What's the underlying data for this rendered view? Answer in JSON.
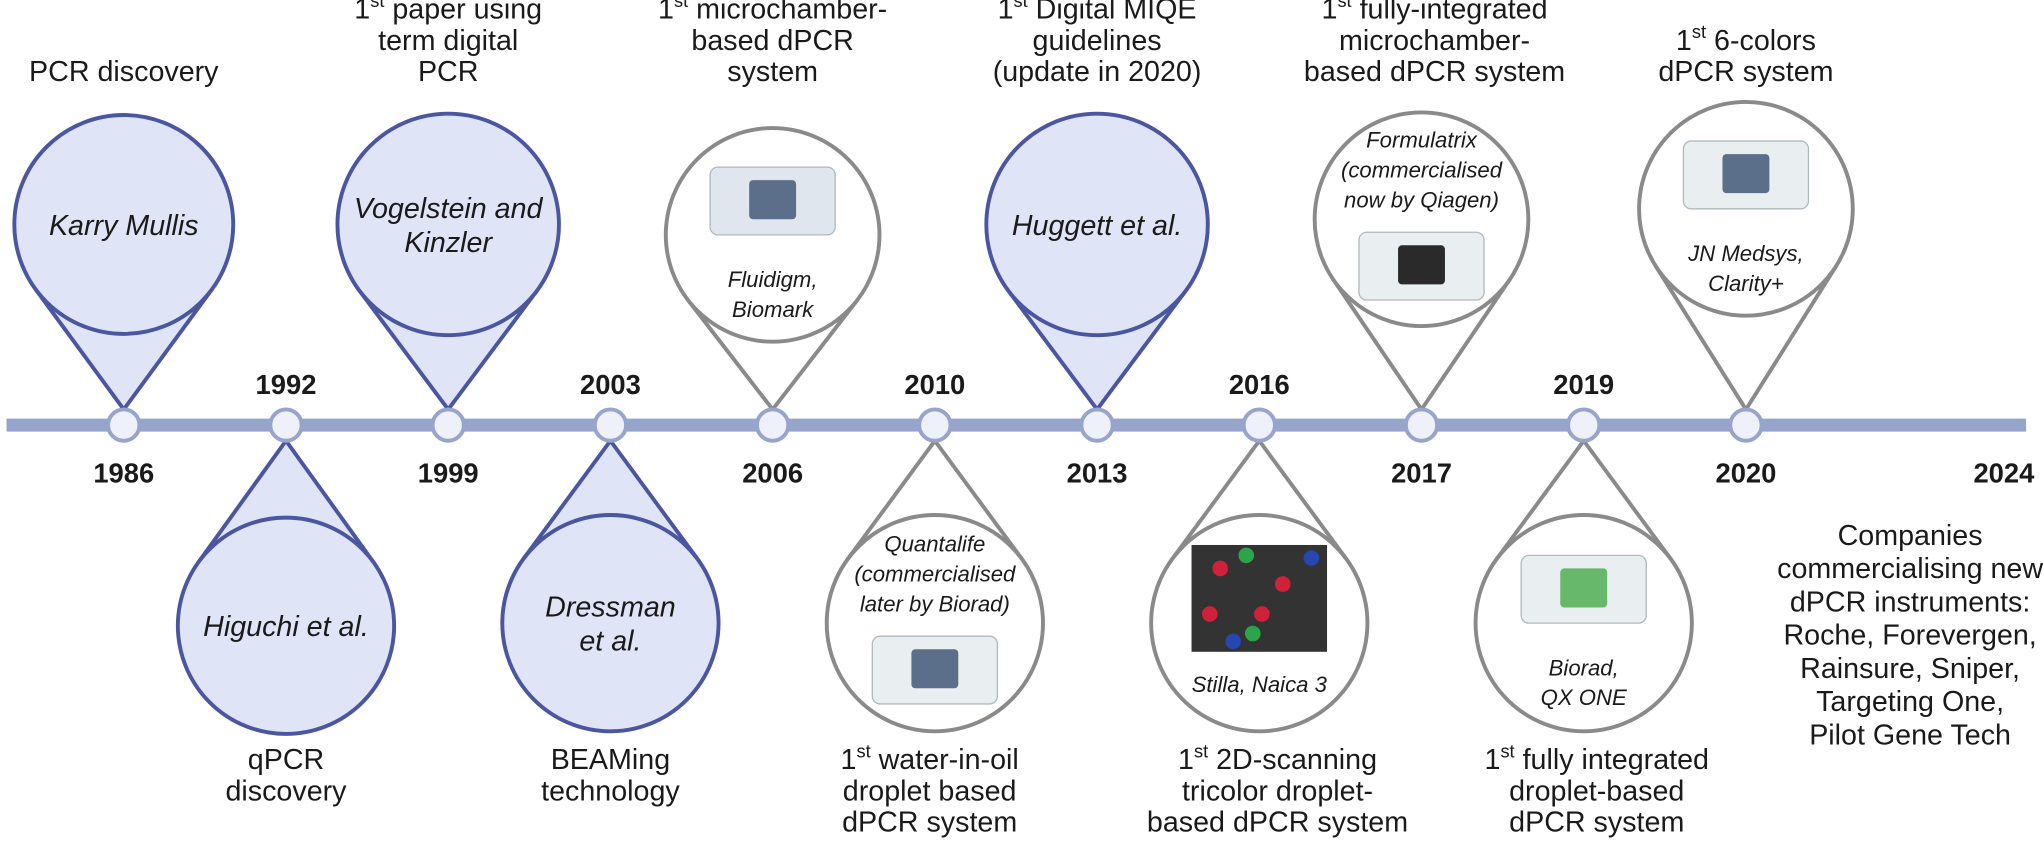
{
  "events": [
    {
      "year": "1986",
      "caption": [
        "PCR discovery"
      ],
      "bubble_text": [
        "Karry Mullis"
      ],
      "style": "name"
    },
    {
      "year": "1992",
      "caption": [
        "qPCR",
        "discovery"
      ],
      "bubble_text": [
        "Higuchi et al."
      ],
      "style": "name"
    },
    {
      "year": "1999",
      "ordinal": "1",
      "ordinal_suffix": "st",
      "caption": [
        " paper using",
        "term digital",
        "PCR"
      ],
      "bubble_text": [
        "Vogelstein and",
        "Kinzler"
      ],
      "style": "name"
    },
    {
      "year": "2003",
      "caption": [
        "BEAMing",
        "technology"
      ],
      "bubble_text": [
        "Dressman",
        "et al."
      ],
      "style": "name"
    },
    {
      "year": "2006",
      "ordinal": "1",
      "ordinal_suffix": "st",
      "caption": [
        " microchamber-",
        "based dPCR",
        "system"
      ],
      "bubble_text": [
        "Fluidigm,",
        "Biomark"
      ],
      "style": "product"
    },
    {
      "year": "2010",
      "ordinal": "1",
      "ordinal_suffix": "st",
      "caption": [
        " water-in-oil",
        "droplet based",
        "dPCR system"
      ],
      "bubble_text": [
        "Quantalife",
        "(commercialised",
        "later by Biorad)"
      ],
      "style": "product"
    },
    {
      "year": "2013",
      "ordinal": "1",
      "ordinal_suffix": "st",
      "caption": [
        " Digital MIQE",
        "guidelines",
        "(update in 2020)"
      ],
      "bubble_text": [
        "Huggett et al."
      ],
      "style": "name"
    },
    {
      "year": "2016",
      "ordinal": "1",
      "ordinal_suffix": "st",
      "caption": [
        " 2D-scanning",
        "tricolor droplet-",
        "based dPCR system"
      ],
      "bubble_text": [
        "Stilla, Naica 3"
      ],
      "style": "product"
    },
    {
      "year": "2017",
      "ordinal": "1",
      "ordinal_suffix": "st",
      "caption": [
        " fully-integrated",
        "microchamber-",
        "based dPCR system"
      ],
      "bubble_text": [
        "Formulatrix",
        "(commercialised",
        "now by Qiagen)"
      ],
      "style": "product"
    },
    {
      "year": "2019",
      "ordinal": "1",
      "ordinal_suffix": "st",
      "caption": [
        " fully integrated",
        "droplet-based",
        "dPCR system"
      ],
      "bubble_text": [
        "Biorad,",
        "QX ONE"
      ],
      "style": "product"
    },
    {
      "year": "2020",
      "ordinal": "1",
      "ordinal_suffix": "st",
      "caption": [
        " 6-colors",
        "dPCR system"
      ],
      "bubble_text": [
        "JN Medsys,",
        "Clarity+"
      ],
      "style": "product"
    }
  ],
  "end": {
    "year": "2024",
    "note": [
      "Companies",
      "commercialising new",
      "dPCR instruments:",
      "Roche, Forevergen,",
      "Rainsure, Sniper,",
      "Targeting One,",
      "Pilot Gene Tech"
    ]
  }
}
